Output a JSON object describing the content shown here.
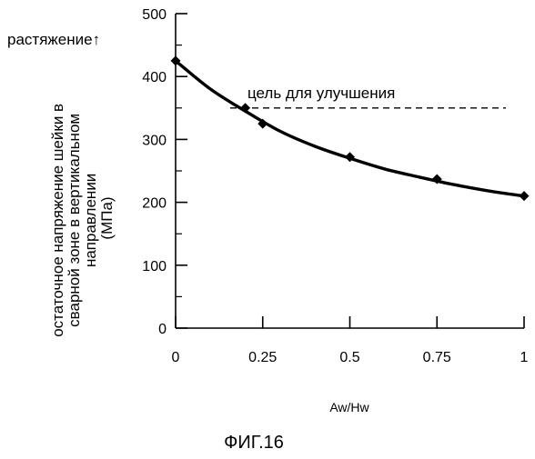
{
  "chart_data": {
    "type": "line",
    "tension_label": "растяжение↑",
    "ylabel_lines": [
      "остаточное напряжение шейки в",
      "сварной зоне в вертикальном",
      "направлении",
      "(МПа)"
    ],
    "xlabel": "Aw/Hw",
    "caption": "ФИГ.16",
    "x_ticks": [
      0,
      0.25,
      0.5,
      0.75,
      1
    ],
    "x_tick_labels": [
      "0",
      "0.25",
      "0.5",
      "0.75",
      "1"
    ],
    "y_ticks": [
      0,
      100,
      200,
      300,
      400,
      500
    ],
    "y_tick_labels": [
      "0",
      "100",
      "200",
      "300",
      "400",
      "500"
    ],
    "xlim": [
      0,
      1
    ],
    "ylim": [
      0,
      500
    ],
    "grid": false,
    "points": [
      {
        "x": 0,
        "y": 425
      },
      {
        "x": 0.2,
        "y": 350
      },
      {
        "x": 0.25,
        "y": 325
      },
      {
        "x": 0.5,
        "y": 272
      },
      {
        "x": 0.75,
        "y": 237
      },
      {
        "x": 1,
        "y": 210
      }
    ],
    "fit_curve": [
      {
        "x": 0,
        "y": 425
      },
      {
        "x": 0.1,
        "y": 380
      },
      {
        "x": 0.2,
        "y": 345
      },
      {
        "x": 0.3,
        "y": 313
      },
      {
        "x": 0.4,
        "y": 289
      },
      {
        "x": 0.5,
        "y": 270
      },
      {
        "x": 0.6,
        "y": 253
      },
      {
        "x": 0.7,
        "y": 240
      },
      {
        "x": 0.8,
        "y": 228
      },
      {
        "x": 0.9,
        "y": 218
      },
      {
        "x": 1,
        "y": 210
      }
    ],
    "target": {
      "y": 350,
      "label": "цель для улучшения"
    }
  }
}
